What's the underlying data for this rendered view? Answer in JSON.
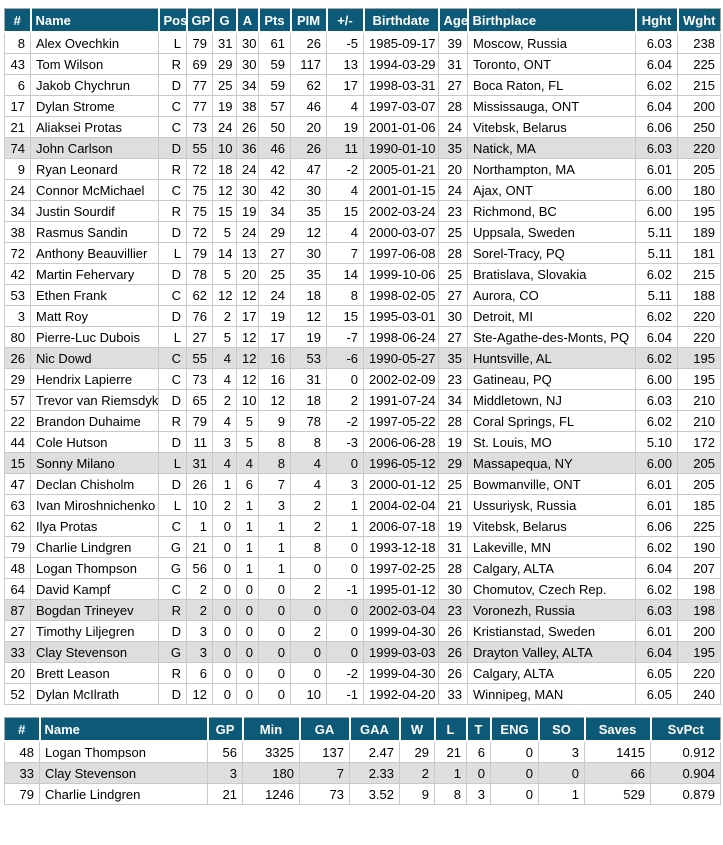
{
  "colors": {
    "header_bg": "#0d5a78",
    "header_text": "#ffffff",
    "row_alt_bg": "#dedede",
    "grid": "#c9c9c9",
    "outer_border": "#a6a6a6",
    "text": "#000000"
  },
  "skaters": {
    "columns": [
      "#",
      "Name",
      "Pos",
      "GP",
      "G",
      "A",
      "Pts",
      "PIM",
      "+/-",
      "Birthdate",
      "Age",
      "Birthplace",
      "Hght",
      "Wght"
    ],
    "shaded_row_indexes": [
      5,
      15,
      20,
      27,
      29
    ],
    "rows": [
      [
        "8",
        "Alex Ovechkin",
        "L",
        "79",
        "31",
        "30",
        "61",
        "26",
        "-5",
        "1985-09-17",
        "39",
        "Moscow, Russia",
        "6.03",
        "238"
      ],
      [
        "43",
        "Tom Wilson",
        "R",
        "69",
        "29",
        "30",
        "59",
        "117",
        "13",
        "1994-03-29",
        "31",
        "Toronto, ONT",
        "6.04",
        "225"
      ],
      [
        "6",
        "Jakob Chychrun",
        "D",
        "77",
        "25",
        "34",
        "59",
        "62",
        "17",
        "1998-03-31",
        "27",
        "Boca Raton, FL",
        "6.02",
        "215"
      ],
      [
        "17",
        "Dylan Strome",
        "C",
        "77",
        "19",
        "38",
        "57",
        "46",
        "4",
        "1997-03-07",
        "28",
        "Mississauga, ONT",
        "6.04",
        "200"
      ],
      [
        "21",
        "Aliaksei Protas",
        "C",
        "73",
        "24",
        "26",
        "50",
        "20",
        "19",
        "2001-01-06",
        "24",
        "Vitebsk, Belarus",
        "6.06",
        "250"
      ],
      [
        "74",
        "John Carlson",
        "D",
        "55",
        "10",
        "36",
        "46",
        "26",
        "11",
        "1990-01-10",
        "35",
        "Natick, MA",
        "6.03",
        "220"
      ],
      [
        "9",
        "Ryan Leonard",
        "R",
        "72",
        "18",
        "24",
        "42",
        "47",
        "-2",
        "2005-01-21",
        "20",
        "Northampton, MA",
        "6.01",
        "205"
      ],
      [
        "24",
        "Connor McMichael",
        "C",
        "75",
        "12",
        "30",
        "42",
        "30",
        "4",
        "2001-01-15",
        "24",
        "Ajax, ONT",
        "6.00",
        "180"
      ],
      [
        "34",
        "Justin Sourdif",
        "R",
        "75",
        "15",
        "19",
        "34",
        "35",
        "15",
        "2002-03-24",
        "23",
        "Richmond, BC",
        "6.00",
        "195"
      ],
      [
        "38",
        "Rasmus Sandin",
        "D",
        "72",
        "5",
        "24",
        "29",
        "12",
        "4",
        "2000-03-07",
        "25",
        "Uppsala, Sweden",
        "5.11",
        "189"
      ],
      [
        "72",
        "Anthony Beauvillier",
        "L",
        "79",
        "14",
        "13",
        "27",
        "30",
        "7",
        "1997-06-08",
        "28",
        "Sorel-Tracy, PQ",
        "5.11",
        "181"
      ],
      [
        "42",
        "Martin Fehervary",
        "D",
        "78",
        "5",
        "20",
        "25",
        "35",
        "14",
        "1999-10-06",
        "25",
        "Bratislava, Slovakia",
        "6.02",
        "215"
      ],
      [
        "53",
        "Ethen Frank",
        "C",
        "62",
        "12",
        "12",
        "24",
        "18",
        "8",
        "1998-02-05",
        "27",
        "Aurora, CO",
        "5.11",
        "188"
      ],
      [
        "3",
        "Matt Roy",
        "D",
        "76",
        "2",
        "17",
        "19",
        "12",
        "15",
        "1995-03-01",
        "30",
        "Detroit, MI",
        "6.02",
        "220"
      ],
      [
        "80",
        "Pierre-Luc Dubois",
        "L",
        "27",
        "5",
        "12",
        "17",
        "19",
        "-7",
        "1998-06-24",
        "27",
        "Ste-Agathe-des-Monts, PQ",
        "6.04",
        "220"
      ],
      [
        "26",
        "Nic Dowd",
        "C",
        "55",
        "4",
        "12",
        "16",
        "53",
        "-6",
        "1990-05-27",
        "35",
        "Huntsville, AL",
        "6.02",
        "195"
      ],
      [
        "29",
        "Hendrix Lapierre",
        "C",
        "73",
        "4",
        "12",
        "16",
        "31",
        "0",
        "2002-02-09",
        "23",
        "Gatineau, PQ",
        "6.00",
        "195"
      ],
      [
        "57",
        "Trevor van Riemsdyk",
        "D",
        "65",
        "2",
        "10",
        "12",
        "18",
        "2",
        "1991-07-24",
        "34",
        "Middletown, NJ",
        "6.03",
        "210"
      ],
      [
        "22",
        "Brandon Duhaime",
        "R",
        "79",
        "4",
        "5",
        "9",
        "78",
        "-2",
        "1997-05-22",
        "28",
        "Coral Springs, FL",
        "6.02",
        "210"
      ],
      [
        "44",
        "Cole Hutson",
        "D",
        "11",
        "3",
        "5",
        "8",
        "8",
        "-3",
        "2006-06-28",
        "19",
        "St. Louis, MO",
        "5.10",
        "172"
      ],
      [
        "15",
        "Sonny Milano",
        "L",
        "31",
        "4",
        "4",
        "8",
        "4",
        "0",
        "1996-05-12",
        "29",
        "Massapequa, NY",
        "6.00",
        "205"
      ],
      [
        "47",
        "Declan Chisholm",
        "D",
        "26",
        "1",
        "6",
        "7",
        "4",
        "3",
        "2000-01-12",
        "25",
        "Bowmanville, ONT",
        "6.01",
        "205"
      ],
      [
        "63",
        "Ivan Miroshnichenko",
        "L",
        "10",
        "2",
        "1",
        "3",
        "2",
        "1",
        "2004-02-04",
        "21",
        "Ussuriysk, Russia",
        "6.01",
        "185"
      ],
      [
        "62",
        "Ilya Protas",
        "C",
        "1",
        "0",
        "1",
        "1",
        "2",
        "1",
        "2006-07-18",
        "19",
        "Vitebsk, Belarus",
        "6.06",
        "225"
      ],
      [
        "79",
        "Charlie Lindgren",
        "G",
        "21",
        "0",
        "1",
        "1",
        "8",
        "0",
        "1993-12-18",
        "31",
        "Lakeville, MN",
        "6.02",
        "190"
      ],
      [
        "48",
        "Logan Thompson",
        "G",
        "56",
        "0",
        "1",
        "1",
        "0",
        "0",
        "1997-02-25",
        "28",
        "Calgary, ALTA",
        "6.04",
        "207"
      ],
      [
        "64",
        "David Kampf",
        "C",
        "2",
        "0",
        "0",
        "0",
        "2",
        "-1",
        "1995-01-12",
        "30",
        "Chomutov, Czech Rep.",
        "6.02",
        "198"
      ],
      [
        "87",
        "Bogdan Trineyev",
        "R",
        "2",
        "0",
        "0",
        "0",
        "0",
        "0",
        "2002-03-04",
        "23",
        "Voronezh, Russia",
        "6.03",
        "198"
      ],
      [
        "27",
        "Timothy Liljegren",
        "D",
        "3",
        "0",
        "0",
        "0",
        "2",
        "0",
        "1999-04-30",
        "26",
        "Kristianstad, Sweden",
        "6.01",
        "200"
      ],
      [
        "33",
        "Clay Stevenson",
        "G",
        "3",
        "0",
        "0",
        "0",
        "0",
        "0",
        "1999-03-03",
        "26",
        "Drayton Valley, ALTA",
        "6.04",
        "195"
      ],
      [
        "20",
        "Brett Leason",
        "R",
        "6",
        "0",
        "0",
        "0",
        "0",
        "-2",
        "1999-04-30",
        "26",
        "Calgary, ALTA",
        "6.05",
        "220"
      ],
      [
        "52",
        "Dylan McIlrath",
        "D",
        "12",
        "0",
        "0",
        "0",
        "10",
        "-1",
        "1992-04-20",
        "33",
        "Winnipeg, MAN",
        "6.05",
        "240"
      ]
    ]
  },
  "goalies": {
    "columns": [
      "#",
      "Name",
      "GP",
      "Min",
      "GA",
      "GAA",
      "W",
      "L",
      "T",
      "ENG",
      "SO",
      "Saves",
      "SvPct"
    ],
    "shaded_row_indexes": [
      1
    ],
    "rows": [
      [
        "48",
        "Logan Thompson",
        "56",
        "3325",
        "137",
        "2.47",
        "29",
        "21",
        "6",
        "0",
        "3",
        "1415",
        "0.912"
      ],
      [
        "33",
        "Clay Stevenson",
        "3",
        "180",
        "7",
        "2.33",
        "2",
        "1",
        "0",
        "0",
        "0",
        "66",
        "0.904"
      ],
      [
        "79",
        "Charlie Lindgren",
        "21",
        "1246",
        "73",
        "3.52",
        "9",
        "8",
        "3",
        "0",
        "1",
        "529",
        "0.879"
      ]
    ]
  }
}
